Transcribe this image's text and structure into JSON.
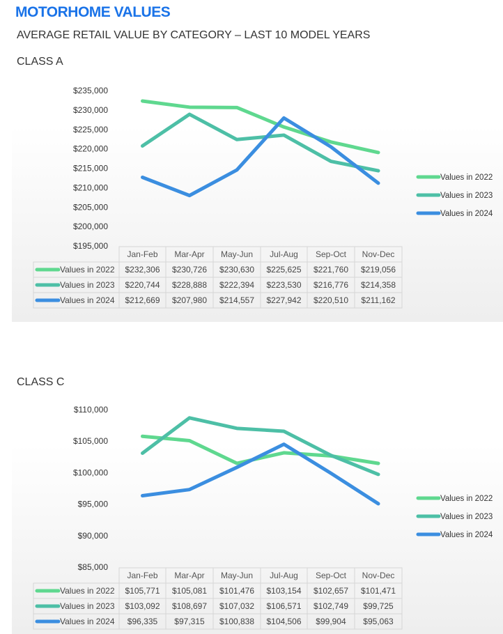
{
  "header": {
    "title": "MOTORHOME VALUES",
    "subtitle": "AVERAGE RETAIL VALUE BY CATEGORY – LAST 10 MODEL YEARS"
  },
  "colors": {
    "title": "#1a73e8",
    "s2022": "#5fd88f",
    "s2023": "#4dbfa6",
    "s2024": "#3b8ee0"
  },
  "chart_data": [
    {
      "type": "line",
      "title": "CLASS A",
      "categories": [
        "Jan-Feb",
        "Mar-Apr",
        "May-Jun",
        "Jul-Aug",
        "Sep-Oct",
        "Nov-Dec"
      ],
      "ylim": [
        195000,
        235000
      ],
      "yticks": [
        195000,
        200000,
        205000,
        210000,
        215000,
        220000,
        225000,
        230000,
        235000
      ],
      "ytick_labels": [
        "$195,000",
        "$200,000",
        "$205,000",
        "$210,000",
        "$215,000",
        "$220,000",
        "$225,000",
        "$230,000",
        "$235,000"
      ],
      "legend": "right",
      "series": [
        {
          "name": "Values in 2022",
          "values": [
            232306,
            230726,
            230630,
            225625,
            221760,
            219056
          ],
          "labels": [
            "$232,306",
            "$230,726",
            "$230,630",
            "$225,625",
            "$221,760",
            "$219,056"
          ]
        },
        {
          "name": "Values in 2023",
          "values": [
            220744,
            228888,
            222394,
            223530,
            216776,
            214358
          ],
          "labels": [
            "$220,744",
            "$228,888",
            "$222,394",
            "$223,530",
            "$216,776",
            "$214,358"
          ]
        },
        {
          "name": "Values in 2024",
          "values": [
            212669,
            207980,
            214557,
            227942,
            220510,
            211162
          ],
          "labels": [
            "$212,669",
            "$207,980",
            "$214,557",
            "$227,942",
            "$220,510",
            "$211,162"
          ]
        }
      ]
    },
    {
      "type": "line",
      "title": "CLASS C",
      "categories": [
        "Jan-Feb",
        "Mar-Apr",
        "May-Jun",
        "Jul-Aug",
        "Sep-Oct",
        "Nov-Dec"
      ],
      "ylim": [
        85000,
        110000
      ],
      "yticks": [
        85000,
        90000,
        95000,
        100000,
        105000,
        110000
      ],
      "ytick_labels": [
        "$85,000",
        "$90,000",
        "$95,000",
        "$100,000",
        "$105,000",
        "$110,000"
      ],
      "legend": "right",
      "series": [
        {
          "name": "Values in 2022",
          "values": [
            105771,
            105081,
            101476,
            103154,
            102657,
            101471
          ],
          "labels": [
            "$105,771",
            "$105,081",
            "$101,476",
            "$103,154",
            "$102,657",
            "$101,471"
          ]
        },
        {
          "name": "Values in 2023",
          "values": [
            103092,
            108697,
            107032,
            106571,
            102749,
            99725
          ],
          "labels": [
            "$103,092",
            "$108,697",
            "$107,032",
            "$106,571",
            "$102,749",
            "$99,725"
          ]
        },
        {
          "name": "Values in 2024",
          "values": [
            96335,
            97315,
            100838,
            104506,
            99904,
            95063
          ],
          "labels": [
            "$96,335",
            "$97,315",
            "$100,838",
            "$104,506",
            "$99,904",
            "$95,063"
          ]
        }
      ]
    }
  ]
}
